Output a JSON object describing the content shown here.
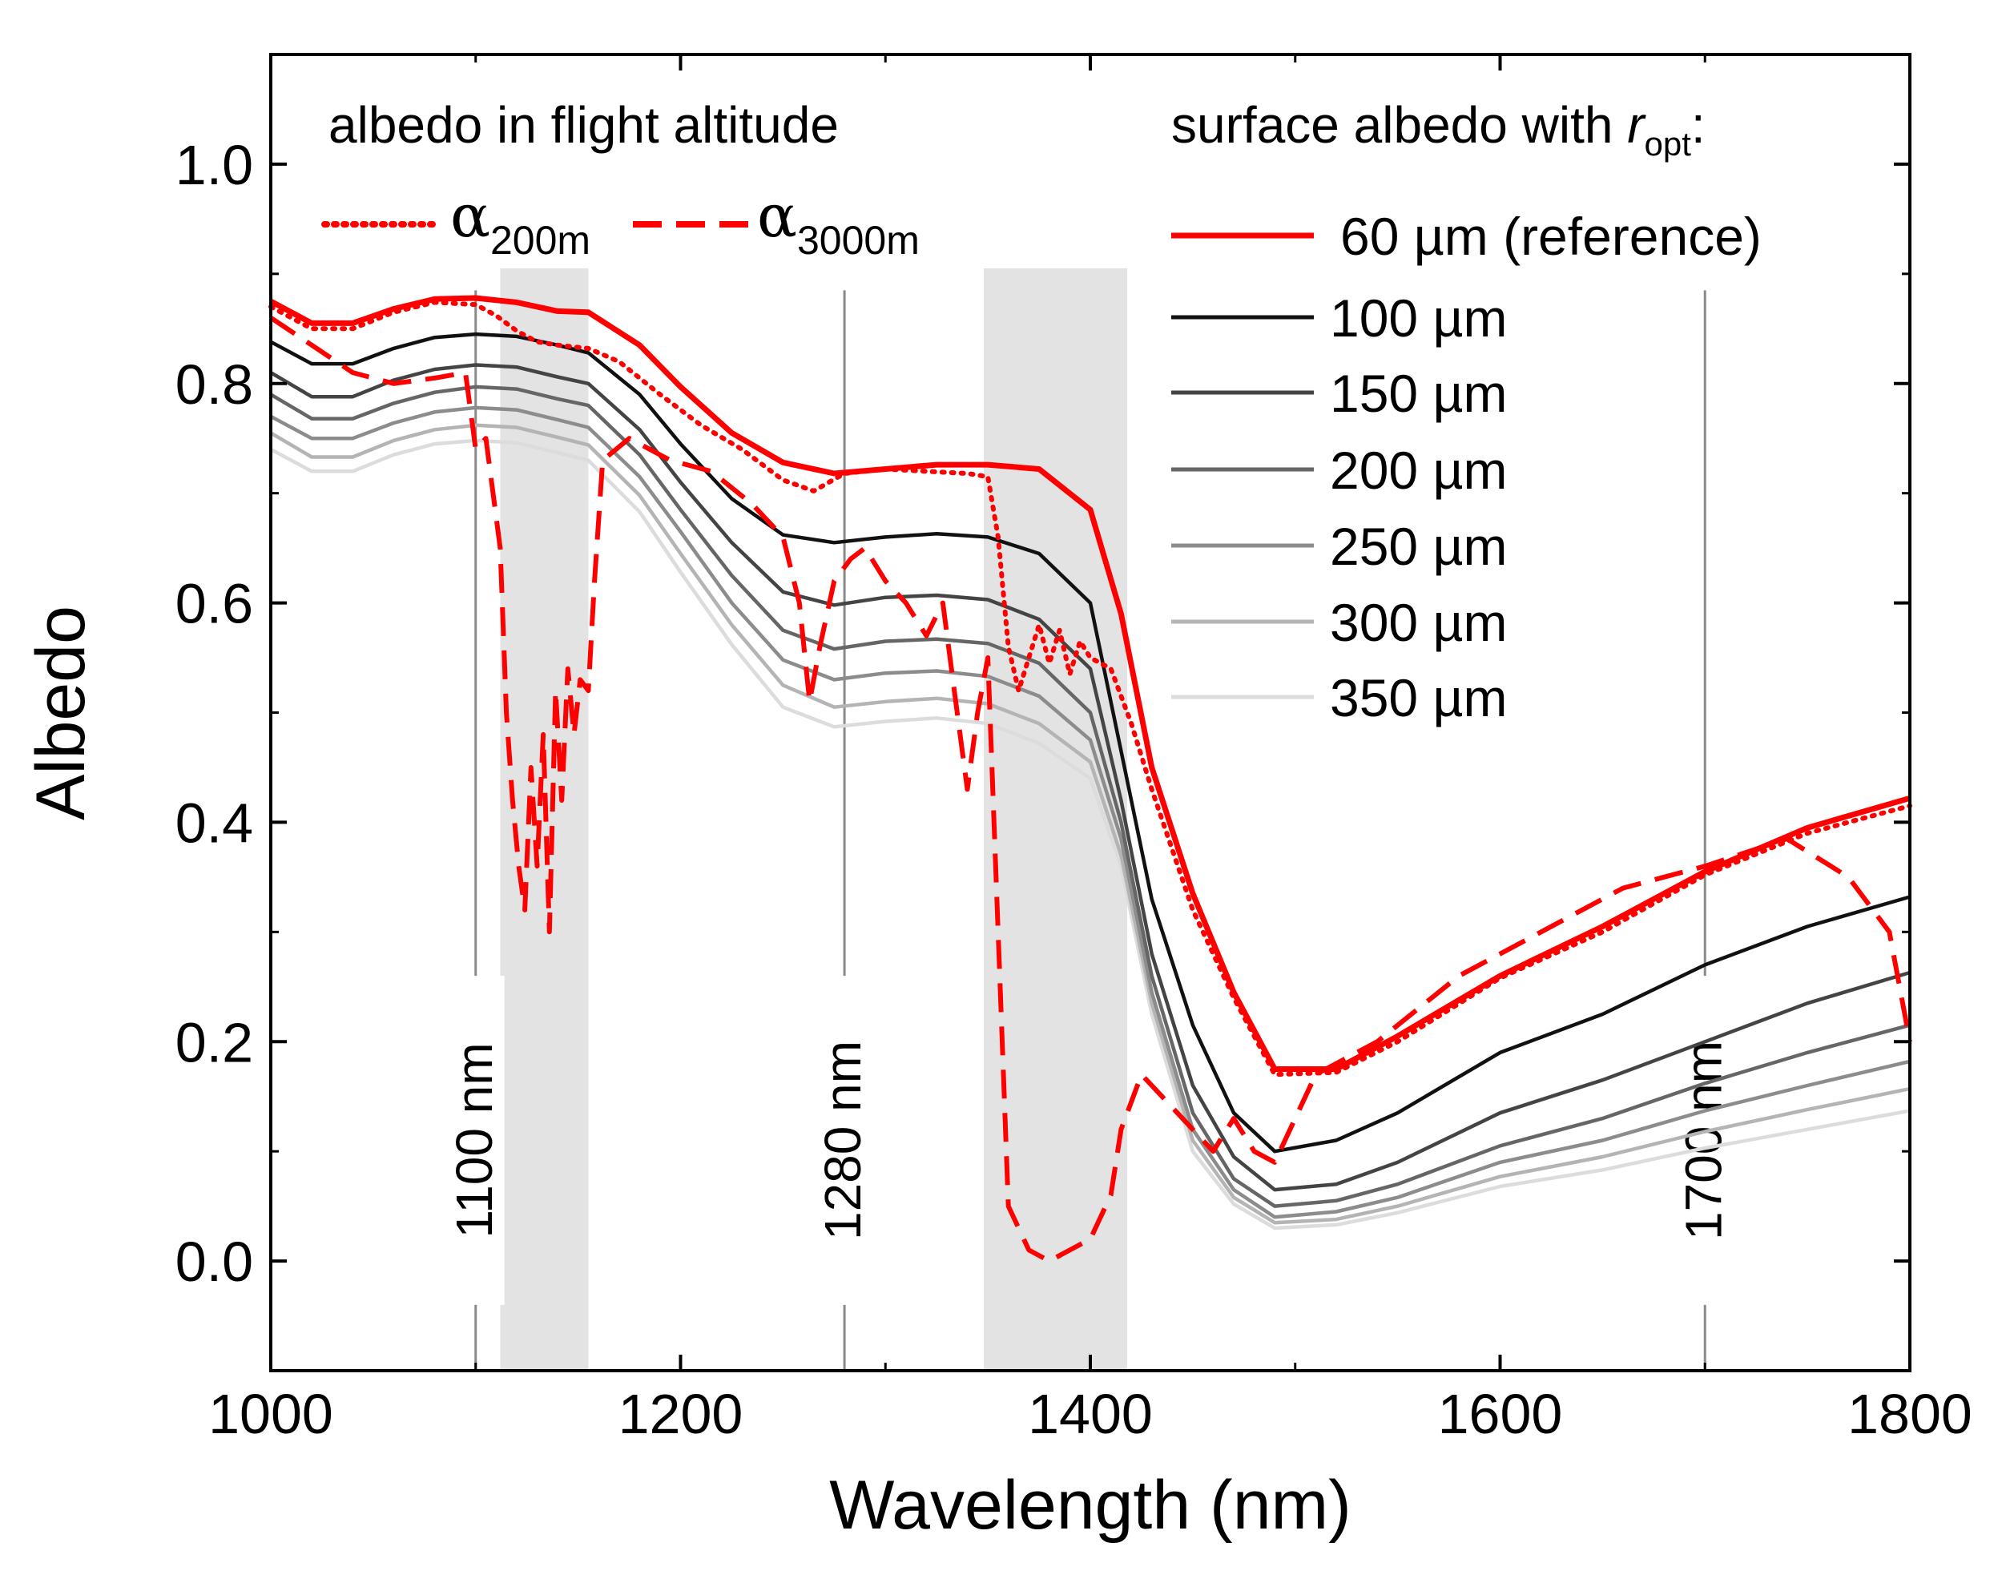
{
  "chart_data": {
    "type": "line",
    "xlabel": "Wavelength (nm)",
    "ylabel": "Albedo",
    "xlim": [
      1000,
      1800
    ],
    "ylim": [
      -0.1,
      1.1
    ],
    "xticks": [
      1000,
      1200,
      1400,
      1600,
      1800
    ],
    "xtick_labels": [
      "1000",
      "1200",
      "1400",
      "1600",
      "1800"
    ],
    "yticks": [
      0.0,
      0.2,
      0.4,
      0.6,
      0.8,
      1.0
    ],
    "ytick_labels": [
      "0.0",
      "0.2",
      "0.4",
      "0.6",
      "0.8",
      "1.0"
    ],
    "grid": false,
    "shaded_regions": [
      [
        1112,
        1155
      ],
      [
        1348,
        1418
      ]
    ],
    "vertical_lines": [
      {
        "x": 1100,
        "label": "1100 nm"
      },
      {
        "x": 1280,
        "label": "1280 nm"
      },
      {
        "x": 1700,
        "label": "1700 nm"
      }
    ],
    "legend_flight": {
      "heading": "albedo in flight altitude",
      "entries": [
        {
          "symbol": "α",
          "subscript": "200m",
          "style": "dotted",
          "color": "#ff0000"
        },
        {
          "symbol": "α",
          "subscript": "3000m",
          "style": "dashed",
          "color": "#ff0000"
        }
      ]
    },
    "legend_surface": {
      "heading_prefix": "surface albedo with ",
      "heading_var": "r",
      "heading_sub": "opt",
      "heading_suffix": ":"
    },
    "series": [
      {
        "name": "60 µm (reference)",
        "color": "#ff0000",
        "style": "solid",
        "x": [
          1000,
          1020,
          1040,
          1060,
          1080,
          1100,
          1120,
          1140,
          1155,
          1180,
          1200,
          1225,
          1250,
          1275,
          1300,
          1325,
          1350,
          1375,
          1400,
          1415,
          1430,
          1450,
          1470,
          1490,
          1520,
          1550,
          1600,
          1650,
          1700,
          1750,
          1800
        ],
        "y": [
          0.875,
          0.855,
          0.855,
          0.868,
          0.877,
          0.878,
          0.874,
          0.866,
          0.865,
          0.835,
          0.797,
          0.755,
          0.728,
          0.718,
          0.722,
          0.726,
          0.726,
          0.722,
          0.685,
          0.59,
          0.45,
          0.335,
          0.245,
          0.175,
          0.175,
          0.205,
          0.26,
          0.305,
          0.355,
          0.395,
          0.422
        ]
      },
      {
        "name": "100 µm",
        "color": "#111111",
        "style": "solid",
        "x": [
          1000,
          1020,
          1040,
          1060,
          1080,
          1100,
          1120,
          1140,
          1155,
          1180,
          1200,
          1225,
          1250,
          1275,
          1300,
          1325,
          1350,
          1375,
          1400,
          1415,
          1430,
          1450,
          1470,
          1490,
          1520,
          1550,
          1600,
          1650,
          1700,
          1750,
          1800
        ],
        "y": [
          0.838,
          0.818,
          0.818,
          0.832,
          0.842,
          0.845,
          0.843,
          0.835,
          0.828,
          0.79,
          0.745,
          0.695,
          0.662,
          0.655,
          0.66,
          0.663,
          0.66,
          0.645,
          0.6,
          0.465,
          0.33,
          0.215,
          0.135,
          0.1,
          0.11,
          0.135,
          0.19,
          0.225,
          0.27,
          0.305,
          0.332
        ]
      },
      {
        "name": "150 µm",
        "color": "#444444",
        "style": "solid",
        "x": [
          1000,
          1020,
          1040,
          1060,
          1080,
          1100,
          1120,
          1140,
          1155,
          1180,
          1200,
          1225,
          1250,
          1275,
          1300,
          1325,
          1350,
          1375,
          1400,
          1415,
          1430,
          1450,
          1470,
          1490,
          1520,
          1550,
          1600,
          1650,
          1700,
          1750,
          1800
        ],
        "y": [
          0.81,
          0.788,
          0.788,
          0.803,
          0.813,
          0.817,
          0.815,
          0.806,
          0.8,
          0.758,
          0.71,
          0.655,
          0.61,
          0.598,
          0.605,
          0.607,
          0.603,
          0.585,
          0.54,
          0.42,
          0.28,
          0.16,
          0.095,
          0.065,
          0.07,
          0.09,
          0.135,
          0.165,
          0.2,
          0.235,
          0.263
        ]
      },
      {
        "name": "200 µm",
        "color": "#666666",
        "style": "solid",
        "x": [
          1000,
          1020,
          1040,
          1060,
          1080,
          1100,
          1120,
          1140,
          1155,
          1180,
          1200,
          1225,
          1250,
          1275,
          1300,
          1325,
          1350,
          1375,
          1400,
          1415,
          1430,
          1450,
          1470,
          1490,
          1520,
          1550,
          1600,
          1650,
          1700,
          1750,
          1800
        ],
        "y": [
          0.79,
          0.768,
          0.768,
          0.782,
          0.792,
          0.797,
          0.795,
          0.786,
          0.78,
          0.735,
          0.685,
          0.625,
          0.575,
          0.558,
          0.565,
          0.567,
          0.563,
          0.545,
          0.5,
          0.4,
          0.26,
          0.135,
          0.075,
          0.05,
          0.055,
          0.07,
          0.105,
          0.13,
          0.162,
          0.19,
          0.215
        ]
      },
      {
        "name": "250 µm",
        "color": "#8c8c8c",
        "style": "solid",
        "x": [
          1000,
          1020,
          1040,
          1060,
          1080,
          1100,
          1120,
          1140,
          1155,
          1180,
          1200,
          1225,
          1250,
          1275,
          1300,
          1325,
          1350,
          1375,
          1400,
          1415,
          1430,
          1450,
          1470,
          1490,
          1520,
          1550,
          1600,
          1650,
          1700,
          1750,
          1800
        ],
        "y": [
          0.77,
          0.75,
          0.75,
          0.764,
          0.774,
          0.778,
          0.776,
          0.767,
          0.76,
          0.715,
          0.665,
          0.6,
          0.548,
          0.53,
          0.536,
          0.538,
          0.533,
          0.515,
          0.475,
          0.385,
          0.245,
          0.12,
          0.065,
          0.04,
          0.045,
          0.058,
          0.09,
          0.11,
          0.137,
          0.16,
          0.182
        ]
      },
      {
        "name": "300 µm",
        "color": "#b4b4b4",
        "style": "solid",
        "x": [
          1000,
          1020,
          1040,
          1060,
          1080,
          1100,
          1120,
          1140,
          1155,
          1180,
          1200,
          1225,
          1250,
          1275,
          1300,
          1325,
          1350,
          1375,
          1400,
          1415,
          1430,
          1450,
          1470,
          1490,
          1520,
          1550,
          1600,
          1650,
          1700,
          1750,
          1800
        ],
        "y": [
          0.755,
          0.733,
          0.733,
          0.748,
          0.758,
          0.762,
          0.76,
          0.751,
          0.744,
          0.698,
          0.645,
          0.58,
          0.525,
          0.505,
          0.51,
          0.513,
          0.508,
          0.49,
          0.455,
          0.37,
          0.235,
          0.11,
          0.058,
          0.035,
          0.038,
          0.05,
          0.077,
          0.095,
          0.118,
          0.138,
          0.157
        ]
      },
      {
        "name": "350 µm",
        "color": "#dcdcdc",
        "style": "solid",
        "x": [
          1000,
          1020,
          1040,
          1060,
          1080,
          1100,
          1120,
          1140,
          1155,
          1180,
          1200,
          1225,
          1250,
          1275,
          1300,
          1325,
          1350,
          1375,
          1400,
          1415,
          1430,
          1450,
          1470,
          1490,
          1520,
          1550,
          1600,
          1650,
          1700,
          1750,
          1800
        ],
        "y": [
          0.74,
          0.72,
          0.72,
          0.735,
          0.745,
          0.748,
          0.746,
          0.737,
          0.73,
          0.683,
          0.628,
          0.562,
          0.505,
          0.487,
          0.492,
          0.495,
          0.49,
          0.472,
          0.44,
          0.36,
          0.225,
          0.1,
          0.052,
          0.03,
          0.033,
          0.044,
          0.068,
          0.083,
          0.103,
          0.12,
          0.137
        ]
      },
      {
        "name": "α200m",
        "color": "#ff0000",
        "style": "dotted",
        "x": [
          1000,
          1020,
          1040,
          1060,
          1080,
          1100,
          1110,
          1120,
          1130,
          1140,
          1155,
          1170,
          1190,
          1210,
          1230,
          1250,
          1265,
          1280,
          1300,
          1320,
          1340,
          1350,
          1355,
          1360,
          1365,
          1370,
          1375,
          1380,
          1385,
          1390,
          1395,
          1400,
          1410,
          1420,
          1430,
          1450,
          1470,
          1490,
          1520,
          1550,
          1600,
          1650,
          1700,
          1750,
          1800
        ],
        "y": [
          0.87,
          0.85,
          0.85,
          0.865,
          0.874,
          0.872,
          0.862,
          0.848,
          0.838,
          0.835,
          0.832,
          0.82,
          0.79,
          0.762,
          0.74,
          0.712,
          0.702,
          0.718,
          0.722,
          0.72,
          0.718,
          0.715,
          0.66,
          0.56,
          0.52,
          0.55,
          0.58,
          0.545,
          0.575,
          0.535,
          0.565,
          0.55,
          0.54,
          0.49,
          0.43,
          0.32,
          0.24,
          0.17,
          0.172,
          0.2,
          0.258,
          0.3,
          0.352,
          0.39,
          0.415
        ]
      },
      {
        "name": "α3000m",
        "color": "#ff0000",
        "style": "dashed",
        "x": [
          1000,
          1020,
          1040,
          1060,
          1080,
          1095,
          1100,
          1105,
          1112,
          1115,
          1118,
          1121,
          1124,
          1127,
          1130,
          1133,
          1136,
          1139,
          1142,
          1145,
          1148,
          1151,
          1155,
          1158,
          1162,
          1175,
          1195,
          1215,
          1235,
          1250,
          1258,
          1263,
          1268,
          1275,
          1283,
          1290,
          1300,
          1310,
          1320,
          1328,
          1335,
          1340,
          1345,
          1350,
          1355,
          1360,
          1370,
          1380,
          1390,
          1400,
          1410,
          1415,
          1425,
          1440,
          1460,
          1470,
          1480,
          1490,
          1510,
          1540,
          1580,
          1620,
          1660,
          1700,
          1740,
          1770,
          1790,
          1800
        ],
        "y": [
          0.86,
          0.835,
          0.81,
          0.8,
          0.805,
          0.81,
          0.74,
          0.75,
          0.65,
          0.5,
          0.42,
          0.36,
          0.32,
          0.45,
          0.36,
          0.48,
          0.3,
          0.52,
          0.42,
          0.54,
          0.48,
          0.53,
          0.52,
          0.62,
          0.73,
          0.75,
          0.73,
          0.72,
          0.69,
          0.66,
          0.6,
          0.51,
          0.56,
          0.62,
          0.64,
          0.65,
          0.62,
          0.6,
          0.57,
          0.6,
          0.5,
          0.43,
          0.5,
          0.55,
          0.3,
          0.05,
          0.01,
          0.0,
          0.01,
          0.02,
          0.06,
          0.12,
          0.17,
          0.14,
          0.1,
          0.13,
          0.1,
          0.09,
          0.17,
          0.2,
          0.26,
          0.3,
          0.34,
          0.36,
          0.385,
          0.35,
          0.3,
          0.2
        ]
      }
    ]
  }
}
